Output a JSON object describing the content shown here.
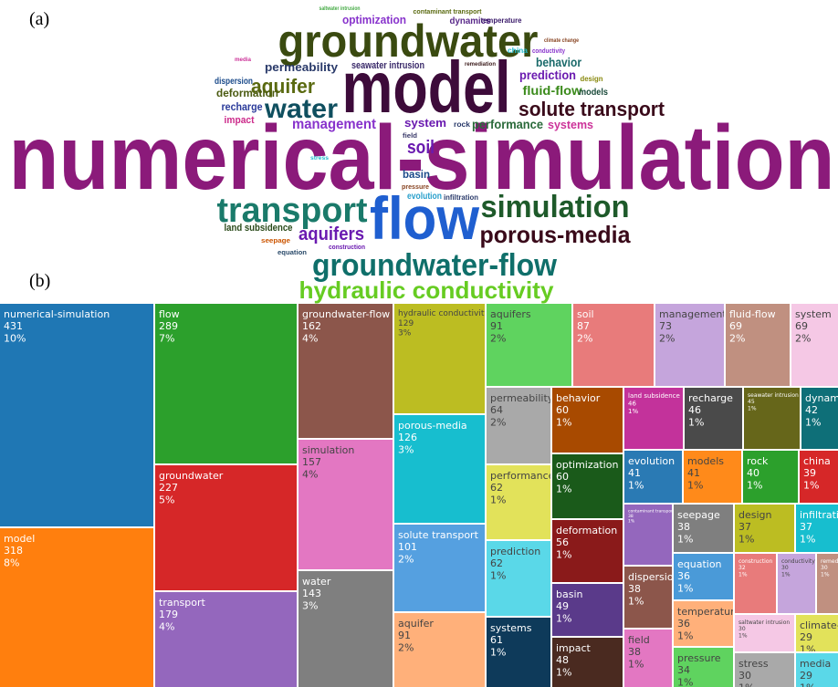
{
  "chart_data": [
    {
      "type": "wordcloud",
      "panel_label": "(a)",
      "words": [
        {
          "text": "numerical-simulation",
          "color": "#8b1a7a"
        },
        {
          "text": "model",
          "color": "#3d0b3a"
        },
        {
          "text": "groundwater",
          "color": "#3a4a10"
        },
        {
          "text": "flow",
          "color": "#1f5fd0"
        },
        {
          "text": "transport",
          "color": "#1a7a6a"
        },
        {
          "text": "simulation",
          "color": "#1e5a2a"
        },
        {
          "text": "porous-media",
          "color": "#3a0a1a"
        },
        {
          "text": "groundwater-flow",
          "color": "#0f6f6a"
        },
        {
          "text": "hydraulic conductivity",
          "color": "#66cc22"
        },
        {
          "text": "solute transport",
          "color": "#3a0a1a"
        },
        {
          "text": "water",
          "color": "#0f4f5f"
        },
        {
          "text": "aquifer",
          "color": "#5a6a10"
        },
        {
          "text": "deformation",
          "color": "#4a5a10"
        },
        {
          "text": "permeability",
          "color": "#2a3a6a"
        },
        {
          "text": "optimization",
          "color": "#8833cc"
        },
        {
          "text": "dynamics",
          "color": "#5a2a8a"
        },
        {
          "text": "temperature",
          "color": "#3a1a6a"
        },
        {
          "text": "contaminant transport",
          "color": "#5a6a10"
        },
        {
          "text": "saltwater intrusion",
          "color": "#44aa44"
        },
        {
          "text": "climate change",
          "color": "#884422"
        },
        {
          "text": "china",
          "color": "#22bbcc"
        },
        {
          "text": "conductivity",
          "color": "#8833cc"
        },
        {
          "text": "media",
          "color": "#cc3399"
        },
        {
          "text": "seawater intrusion",
          "color": "#3a2a6a"
        },
        {
          "text": "remediation",
          "color": "#3a1a1a"
        },
        {
          "text": "behavior",
          "color": "#1a6a6a"
        },
        {
          "text": "prediction",
          "color": "#6a1ab0"
        },
        {
          "text": "design",
          "color": "#8a8a10"
        },
        {
          "text": "dispersion",
          "color": "#1a4a8a"
        },
        {
          "text": "fluid-flow",
          "color": "#3a8a1a"
        },
        {
          "text": "models",
          "color": "#1a4a3a"
        },
        {
          "text": "recharge",
          "color": "#2a3a9a"
        },
        {
          "text": "impact",
          "color": "#cc2a8a"
        },
        {
          "text": "management",
          "color": "#8833cc"
        },
        {
          "text": "system",
          "color": "#6a1ab0"
        },
        {
          "text": "rock",
          "color": "#2a3a6a"
        },
        {
          "text": "performance",
          "color": "#2a6a3a"
        },
        {
          "text": "systems",
          "color": "#cc3399"
        },
        {
          "text": "field",
          "color": "#3a3a6a"
        },
        {
          "text": "soil",
          "color": "#6a1ab0"
        },
        {
          "text": "stress",
          "color": "#22bbcc"
        },
        {
          "text": "basin",
          "color": "#1a4a8a"
        },
        {
          "text": "pressure",
          "color": "#884422"
        },
        {
          "text": "evolution",
          "color": "#2aa0cc"
        },
        {
          "text": "infiltration",
          "color": "#2a3a6a"
        },
        {
          "text": "land subsidence",
          "color": "#2a4a1a"
        },
        {
          "text": "aquifers",
          "color": "#6a1ab0"
        },
        {
          "text": "seepage",
          "color": "#cc5500"
        },
        {
          "text": "construction",
          "color": "#6a1ab0"
        },
        {
          "text": "equation",
          "color": "#2a4a6a"
        }
      ]
    },
    {
      "type": "treemap",
      "panel_label": "(b)",
      "categories": [
        "numerical-simulation",
        "model",
        "flow",
        "groundwater",
        "transport",
        "groundwater-flow",
        "simulation",
        "water",
        "hydraulic conductivity",
        "porous-media",
        "solute transport",
        "aquifer",
        "aquifers",
        "soil",
        "management",
        "fluid-flow",
        "system",
        "permeability",
        "performance",
        "prediction",
        "systems",
        "behavior",
        "optimization",
        "deformation",
        "basin",
        "impact",
        "land subsidence",
        "recharge",
        "seawater intrusion",
        "dynamics",
        "evolution",
        "models",
        "rock",
        "china",
        "contaminant transport",
        "dispersion",
        "field",
        "seepage",
        "equation",
        "temperature",
        "pressure",
        "design",
        "infiltration",
        "construction",
        "conductivity",
        "remediation",
        "saltwater intrusion",
        "climate-change",
        "stress",
        "media"
      ],
      "values": [
        431,
        318,
        289,
        227,
        179,
        162,
        157,
        143,
        129,
        126,
        101,
        91,
        91,
        87,
        73,
        69,
        69,
        64,
        62,
        62,
        61,
        60,
        60,
        56,
        49,
        48,
        46,
        46,
        45,
        42,
        41,
        41,
        40,
        39,
        38,
        38,
        38,
        38,
        36,
        36,
        34,
        37,
        37,
        32,
        30,
        30,
        30,
        29,
        30,
        29
      ],
      "share_labels": [
        "10%",
        "8%",
        "7%",
        "5%",
        "4%",
        "4%",
        "4%",
        "3%",
        "3%",
        "3%",
        "2%",
        "2%",
        "2%",
        "2%",
        "2%",
        "2%",
        "2%",
        "2%",
        "1%",
        "1%",
        "1%",
        "1%",
        "1%",
        "1%",
        "1%",
        "1%",
        "1%",
        "1%",
        "1%",
        "1%",
        "1%",
        "1%",
        "1%",
        "1%",
        "1%",
        "1%",
        "1%",
        "1%",
        "1%",
        "1%",
        "1%",
        "1%",
        "1%",
        "1%",
        "1%",
        "1%",
        "1%",
        "1%",
        "1%",
        "1%"
      ],
      "colors": [
        "#1f77b4",
        "#ff7f0e",
        "#2ca02c",
        "#d62728",
        "#9467bd",
        "#8c564b",
        "#e377c2",
        "#7f7f7f",
        "#bcbd22",
        "#17becf",
        "#55a0e0",
        "#ffb07a",
        "#5fd35f",
        "#e87b7b",
        "#c5a5dc",
        "#c09080",
        "#f5c8e5",
        "#a9a9a9",
        "#e2e25a",
        "#5ad8e8",
        "#0e3a5a",
        "#a84a00",
        "#1a5a1a",
        "#8a1a1a",
        "#5a3a8a",
        "#4a2a20",
        "#c3329b",
        "#4a4a4a",
        "#66661a",
        "#0e6f78",
        "#2a7ab4",
        "#ff8a1a",
        "#2ca02c",
        "#d62728",
        "#9467bd",
        "#8c564b",
        "#e377c2",
        "#7f7f7f",
        "#4a9ad8",
        "#ffb07a",
        "#5fd35f",
        "#bcbd22",
        "#17becf",
        "#e87b7b",
        "#c5a5dc",
        "#c09080",
        "#f5c8e5",
        "#e2e25a",
        "#a9a9a9",
        "#5ad8e8"
      ]
    }
  ]
}
